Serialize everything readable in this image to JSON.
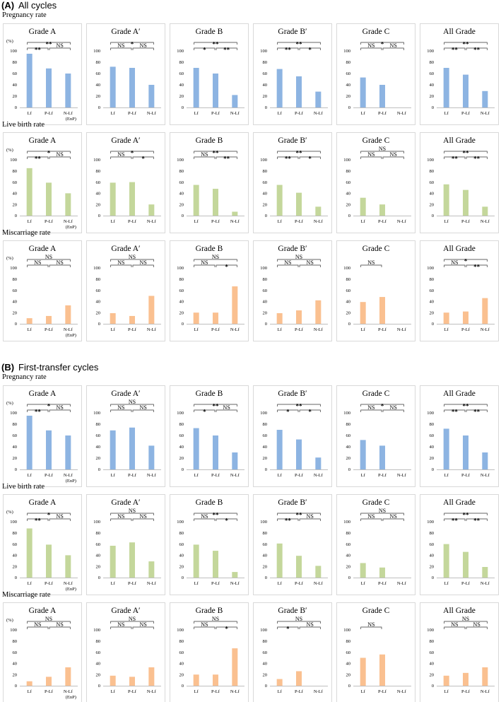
{
  "figure": {
    "sections": [
      {
        "label": "(A)",
        "title": "All cycles",
        "rows": [
          {
            "label": "Pregnancy rate",
            "color": "#8db4e2",
            "panels": [
              {
                "title": "Grade A",
                "ylabel": "(%)",
                "values": [
                  95,
                  69,
                  60
                ],
                "enp": true,
                "brackets": {
                  "lf_plf": "**",
                  "plf_nlf": "NS",
                  "lf_nlf": "**"
                }
              },
              {
                "title": "Grade A′",
                "ylabel": "",
                "values": [
                  72,
                  70,
                  40
                ],
                "enp": false,
                "brackets": {
                  "lf_plf": "NS",
                  "plf_nlf": "NS",
                  "lf_nlf": "*"
                }
              },
              {
                "title": "Grade B",
                "ylabel": "",
                "values": [
                  70,
                  60,
                  22
                ],
                "enp": false,
                "brackets": {
                  "lf_plf": "*",
                  "plf_nlf": "**",
                  "lf_nlf": "**"
                }
              },
              {
                "title": "Grade B′",
                "ylabel": "",
                "values": [
                  68,
                  55,
                  28
                ],
                "enp": false,
                "brackets": {
                  "lf_plf": "**",
                  "plf_nlf": "*",
                  "lf_nlf": "**"
                }
              },
              {
                "title": "Grade C",
                "ylabel": "",
                "values": [
                  53,
                  40,
                  null
                ],
                "enp": false,
                "brackets": {
                  "lf_plf": "NS",
                  "plf_nlf": "NS",
                  "lf_nlf": "*"
                }
              },
              {
                "title": "All Grade",
                "ylabel": "",
                "values": [
                  70,
                  58,
                  29
                ],
                "enp": false,
                "brackets": {
                  "lf_plf": "**",
                  "plf_nlf": "**",
                  "lf_nlf": "**"
                }
              }
            ]
          },
          {
            "label": "Live birth rate",
            "color": "#c4d79b",
            "panels": [
              {
                "title": "Grade A",
                "ylabel": "(%)",
                "values": [
                  85,
                  59,
                  40
                ],
                "enp": true,
                "brackets": {
                  "lf_plf": "**",
                  "plf_nlf": "NS",
                  "lf_nlf": "*"
                }
              },
              {
                "title": "Grade A′",
                "ylabel": "",
                "values": [
                  59,
                  60,
                  20
                ],
                "enp": false,
                "brackets": {
                  "lf_plf": "NS",
                  "plf_nlf": "*",
                  "lf_nlf": "*"
                }
              },
              {
                "title": "Grade B",
                "ylabel": "",
                "values": [
                  55,
                  48,
                  7
                ],
                "enp": false,
                "brackets": {
                  "lf_plf": "NS",
                  "plf_nlf": "**",
                  "lf_nlf": "**"
                }
              },
              {
                "title": "Grade B′",
                "ylabel": "",
                "values": [
                  55,
                  41,
                  16
                ],
                "enp": false,
                "brackets": {
                  "lf_plf": "**",
                  "plf_nlf": "*",
                  "lf_nlf": "**"
                }
              },
              {
                "title": "Grade C",
                "ylabel": "",
                "values": [
                  32,
                  20,
                  null
                ],
                "enp": false,
                "brackets": {
                  "lf_plf": "NS",
                  "plf_nlf": "NS",
                  "lf_nlf": "NS"
                }
              },
              {
                "title": "All Grade",
                "ylabel": "",
                "values": [
                  56,
                  46,
                  16
                ],
                "enp": false,
                "brackets": {
                  "lf_plf": "**",
                  "plf_nlf": "**",
                  "lf_nlf": "**"
                }
              }
            ]
          },
          {
            "label": "Miscarriage rate",
            "color": "#fac090",
            "panels": [
              {
                "title": "Grade A",
                "ylabel": "(%)",
                "values": [
                  10,
                  14,
                  33
                ],
                "enp": true,
                "brackets": {
                  "lf_plf": "NS",
                  "plf_nlf": "NS",
                  "lf_nlf": "NS"
                }
              },
              {
                "title": "Grade A′",
                "ylabel": "",
                "values": [
                  19,
                  14,
                  50
                ],
                "enp": false,
                "brackets": {
                  "lf_plf": "NS",
                  "plf_nlf": "NS",
                  "lf_nlf": "NS"
                }
              },
              {
                "title": "Grade B",
                "ylabel": "",
                "values": [
                  20,
                  20,
                  67
                ],
                "enp": false,
                "brackets": {
                  "lf_plf": "NS",
                  "plf_nlf": "*",
                  "lf_nlf": "NS"
                }
              },
              {
                "title": "Grade B′",
                "ylabel": "",
                "values": [
                  19,
                  24,
                  42
                ],
                "enp": false,
                "brackets": {
                  "lf_plf": "NS",
                  "plf_nlf": "NS",
                  "lf_nlf": "NS"
                }
              },
              {
                "title": "Grade C",
                "ylabel": "",
                "values": [
                  39,
                  48,
                  null
                ],
                "enp": false,
                "brackets": {
                  "lf_plf": "NS",
                  "plf_nlf": null,
                  "lf_nlf": null
                }
              },
              {
                "title": "All Grade",
                "ylabel": "",
                "values": [
                  20,
                  22,
                  46
                ],
                "enp": false,
                "brackets": {
                  "lf_plf": "NS",
                  "plf_nlf": "**",
                  "lf_nlf": "*"
                }
              }
            ]
          }
        ]
      },
      {
        "label": "(B)",
        "title": "First-transfer cycles",
        "rows": [
          {
            "label": "Pregnancy rate",
            "color": "#8db4e2",
            "panels": [
              {
                "title": "Grade A",
                "ylabel": "(%)",
                "values": [
                  95,
                  69,
                  60
                ],
                "enp": true,
                "brackets": {
                  "lf_plf": "**",
                  "plf_nlf": "NS",
                  "lf_nlf": "*"
                }
              },
              {
                "title": "Grade A′",
                "ylabel": "",
                "values": [
                  69,
                  74,
                  42
                ],
                "enp": false,
                "brackets": {
                  "lf_plf": "NS",
                  "plf_nlf": "NS",
                  "lf_nlf": "NS"
                }
              },
              {
                "title": "Grade B",
                "ylabel": "",
                "values": [
                  73,
                  60,
                  30
                ],
                "enp": false,
                "brackets": {
                  "lf_plf": "*",
                  "plf_nlf": "NS",
                  "lf_nlf": "**"
                }
              },
              {
                "title": "Grade B′",
                "ylabel": "",
                "values": [
                  70,
                  53,
                  21
                ],
                "enp": false,
                "brackets": {
                  "lf_plf": "*",
                  "plf_nlf": "*",
                  "lf_nlf": "**"
                }
              },
              {
                "title": "Grade C",
                "ylabel": "",
                "values": [
                  52,
                  42,
                  null
                ],
                "enp": false,
                "brackets": {
                  "lf_plf": "NS",
                  "plf_nlf": "NS",
                  "lf_nlf": "*"
                }
              },
              {
                "title": "All Grade",
                "ylabel": "",
                "values": [
                  72,
                  60,
                  30
                ],
                "enp": false,
                "brackets": {
                  "lf_plf": "**",
                  "plf_nlf": "**",
                  "lf_nlf": "**"
                }
              }
            ]
          },
          {
            "label": "Live birth rate",
            "color": "#c4d79b",
            "panels": [
              {
                "title": "Grade A",
                "ylabel": "(%)",
                "values": [
                  88,
                  59,
                  40
                ],
                "enp": true,
                "brackets": {
                  "lf_plf": "**",
                  "plf_nlf": "NS",
                  "lf_nlf": "*"
                }
              },
              {
                "title": "Grade A′",
                "ylabel": "",
                "values": [
                  57,
                  63,
                  29
                ],
                "enp": false,
                "brackets": {
                  "lf_plf": "NS",
                  "plf_nlf": "NS",
                  "lf_nlf": "NS"
                }
              },
              {
                "title": "Grade B",
                "ylabel": "",
                "values": [
                  59,
                  48,
                  10
                ],
                "enp": false,
                "brackets": {
                  "lf_plf": "NS",
                  "plf_nlf": "*",
                  "lf_nlf": "**"
                }
              },
              {
                "title": "Grade B′",
                "ylabel": "",
                "values": [
                  61,
                  39,
                  21
                ],
                "enp": false,
                "brackets": {
                  "lf_plf": "**",
                  "plf_nlf": "NS",
                  "lf_nlf": "**"
                }
              },
              {
                "title": "Grade C",
                "ylabel": "",
                "values": [
                  26,
                  18,
                  null
                ],
                "enp": false,
                "brackets": {
                  "lf_plf": "NS",
                  "plf_nlf": "NS",
                  "lf_nlf": "NS"
                }
              },
              {
                "title": "All Grade",
                "ylabel": "",
                "values": [
                  60,
                  46,
                  19
                ],
                "enp": false,
                "brackets": {
                  "lf_plf": "**",
                  "plf_nlf": "**",
                  "lf_nlf": "**"
                }
              }
            ]
          },
          {
            "label": "Miscarriage rate",
            "color": "#fac090",
            "panels": [
              {
                "title": "Grade A",
                "ylabel": "(%)",
                "values": [
                  8,
                  16,
                  33
                ],
                "enp": true,
                "brackets": {
                  "lf_plf": "NS",
                  "plf_nlf": "NS",
                  "lf_nlf": "NS"
                }
              },
              {
                "title": "Grade A′",
                "ylabel": "",
                "values": [
                  18,
                  16,
                  33
                ],
                "enp": false,
                "brackets": {
                  "lf_plf": "NS",
                  "plf_nlf": "NS",
                  "lf_nlf": "NS"
                }
              },
              {
                "title": "Grade B",
                "ylabel": "",
                "values": [
                  20,
                  20,
                  67
                ],
                "enp": false,
                "brackets": {
                  "lf_plf": "NS",
                  "plf_nlf": "*",
                  "lf_nlf": "NS"
                }
              },
              {
                "title": "Grade B′",
                "ylabel": "",
                "values": [
                  12,
                  26,
                  null
                ],
                "enp": false,
                "brackets": {
                  "lf_plf": "*",
                  "plf_nlf": "NS",
                  "lf_nlf": "NS"
                }
              },
              {
                "title": "Grade C",
                "ylabel": "",
                "values": [
                  50,
                  56,
                  null
                ],
                "enp": false,
                "brackets": {
                  "lf_plf": "NS",
                  "plf_nlf": null,
                  "lf_nlf": null
                }
              },
              {
                "title": "All Grade",
                "ylabel": "",
                "values": [
                  18,
                  23,
                  33
                ],
                "enp": false,
                "brackets": {
                  "lf_plf": "NS",
                  "plf_nlf": "NS",
                  "lf_nlf": "NS"
                }
              }
            ]
          }
        ]
      }
    ]
  },
  "chart_data": {
    "type": "bar",
    "categories": [
      "Lf",
      "P-Lf",
      "N-Lf"
    ],
    "category_note": "(EnP)",
    "yticks": [
      0,
      20,
      40,
      60,
      80,
      100
    ],
    "ylim": [
      0,
      100
    ],
    "ylabel": "(%)",
    "panel_groups": [
      "Grade A",
      "Grade A′",
      "Grade B",
      "Grade B′",
      "Grade C",
      "All Grade"
    ],
    "series": [
      {
        "name": "All cycles - Pregnancy rate",
        "values": [
          [
            95,
            69,
            60
          ],
          [
            72,
            70,
            40
          ],
          [
            70,
            60,
            22
          ],
          [
            68,
            55,
            28
          ],
          [
            53,
            40,
            null
          ],
          [
            70,
            58,
            29
          ]
        ]
      },
      {
        "name": "All cycles - Live birth rate",
        "values": [
          [
            85,
            59,
            40
          ],
          [
            59,
            60,
            20
          ],
          [
            55,
            48,
            7
          ],
          [
            55,
            41,
            16
          ],
          [
            32,
            20,
            null
          ],
          [
            56,
            46,
            16
          ]
        ]
      },
      {
        "name": "All cycles - Miscarriage rate",
        "values": [
          [
            10,
            14,
            33
          ],
          [
            19,
            14,
            50
          ],
          [
            20,
            20,
            67
          ],
          [
            19,
            24,
            42
          ],
          [
            39,
            48,
            null
          ],
          [
            20,
            22,
            46
          ]
        ]
      },
      {
        "name": "First-transfer cycles - Pregnancy rate",
        "values": [
          [
            95,
            69,
            60
          ],
          [
            69,
            74,
            42
          ],
          [
            73,
            60,
            30
          ],
          [
            70,
            53,
            21
          ],
          [
            52,
            42,
            null
          ],
          [
            72,
            60,
            30
          ]
        ]
      },
      {
        "name": "First-transfer cycles - Live birth rate",
        "values": [
          [
            88,
            59,
            40
          ],
          [
            57,
            63,
            29
          ],
          [
            59,
            48,
            10
          ],
          [
            61,
            39,
            21
          ],
          [
            26,
            18,
            null
          ],
          [
            60,
            46,
            19
          ]
        ]
      },
      {
        "name": "First-transfer cycles - Miscarriage rate",
        "values": [
          [
            8,
            16,
            33
          ],
          [
            18,
            16,
            33
          ],
          [
            20,
            20,
            67
          ],
          [
            12,
            26,
            null
          ],
          [
            50,
            56,
            null
          ],
          [
            18,
            23,
            33
          ]
        ]
      }
    ]
  }
}
